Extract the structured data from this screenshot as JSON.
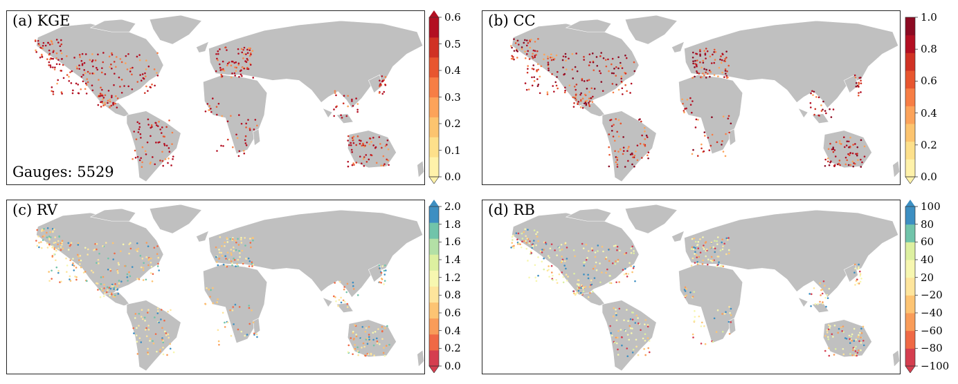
{
  "gauges_text": "Gauges: 5529",
  "land_color": "#c0c0c0",
  "border_color": "#ffffff",
  "panels": [
    {
      "label": "(a) KGE",
      "colors": [
        "#fff2aa",
        "#fde08b",
        "#fcc46f",
        "#fca35a",
        "#f77e45",
        "#e8562f",
        "#d03224",
        "#b30f22"
      ],
      "ticks": [
        "0.0",
        "0.1",
        "0.2",
        "0.3",
        "0.4",
        "0.5",
        "0.6"
      ],
      "extend": "both",
      "dot_colors": [
        "#b30f22",
        "#b30f22",
        "#d03224",
        "#b30f22",
        "#e8562f",
        "#f77e45",
        "#fca35a",
        "#b30f22"
      ]
    },
    {
      "label": "(b) CC",
      "colors": [
        "#fff2aa",
        "#fde08b",
        "#fcc46f",
        "#fca35a",
        "#f77e45",
        "#e8562f",
        "#d03224",
        "#b30f22",
        "#8c0a22"
      ],
      "ticks": [
        "0.0",
        "0.2",
        "0.4",
        "0.6",
        "0.8",
        "1.0"
      ],
      "extend": "min",
      "dot_colors": [
        "#8c0a22",
        "#b30f22",
        "#d03224",
        "#8c0a22",
        "#e8562f",
        "#f77e45",
        "#b30f22",
        "#fca35a"
      ]
    },
    {
      "label": "(c) RV",
      "colors": [
        "#d53e4f",
        "#f06945",
        "#f99c59",
        "#fdc473",
        "#fee59c",
        "#f7f7b0",
        "#ddf0a0",
        "#b3e0a6",
        "#71c4aa",
        "#3d8fc2"
      ],
      "ticks": [
        "0.0",
        "0.2",
        "0.4",
        "0.6",
        "0.8",
        "1.2",
        "1.4",
        "1.6",
        "1.8",
        "2.0"
      ],
      "extend": "both",
      "dot_colors": [
        "#fee59c",
        "#f7f7b0",
        "#fdc473",
        "#f99c59",
        "#3d8fc2",
        "#71c4aa",
        "#f06945",
        "#fee59c"
      ]
    },
    {
      "label": "(d) RB",
      "colors": [
        "#d53e4f",
        "#f06945",
        "#f99c59",
        "#fdc473",
        "#fee59c",
        "#f7f7b0",
        "#ddf0a0",
        "#71c4aa",
        "#3d8fc2"
      ],
      "ticks": [
        "−100",
        "−80",
        "−60",
        "−40",
        "−20",
        "20",
        "40",
        "60",
        "80",
        "100"
      ],
      "extend": "both",
      "dot_colors": [
        "#f7f7b0",
        "#fee59c",
        "#f7f7b0",
        "#f99c59",
        "#3d8fc2",
        "#d53e4f",
        "#fdc473",
        "#ddf0a0"
      ]
    }
  ]
}
